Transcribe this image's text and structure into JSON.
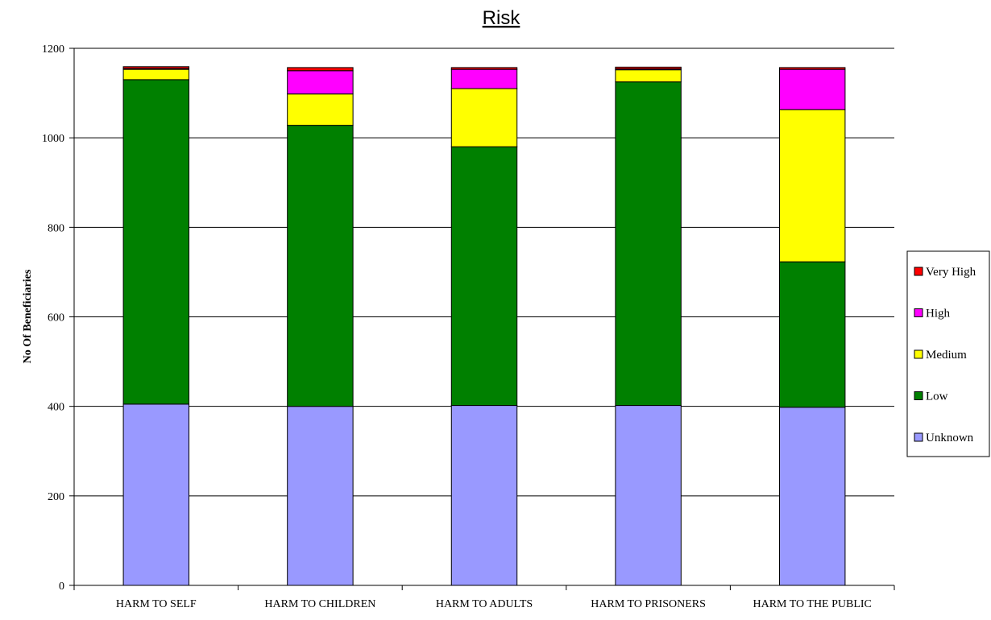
{
  "chart_data": {
    "type": "bar",
    "stacked": true,
    "title": "Risk",
    "xlabel": "",
    "ylabel": "No Of Beneficiaries",
    "ylim": [
      0,
      1200
    ],
    "yticks": [
      0,
      200,
      400,
      600,
      800,
      1000,
      1200
    ],
    "grid": true,
    "legend_position": "right",
    "categories": [
      "HARM TO SELF",
      "HARM TO CHILDREN",
      "HARM TO ADULTS",
      "HARM TO PRISONERS",
      "HARM TO THE PUBLIC"
    ],
    "series": [
      {
        "name": "Unknown",
        "color": "#9999ff",
        "values": [
          405,
          400,
          402,
          402,
          398
        ]
      },
      {
        "name": "Low",
        "color": "#008000",
        "values": [
          725,
          628,
          578,
          723,
          325
        ]
      },
      {
        "name": "Medium",
        "color": "#ffff00",
        "values": [
          23,
          70,
          130,
          27,
          340
        ]
      },
      {
        "name": "High",
        "color": "#ff00ff",
        "values": [
          2,
          52,
          43,
          2,
          90
        ]
      },
      {
        "name": "Very High",
        "color": "#ff0000",
        "values": [
          4,
          7,
          4,
          4,
          4
        ]
      }
    ],
    "legend_order": [
      "Very High",
      "High",
      "Medium",
      "Low",
      "Unknown"
    ]
  }
}
